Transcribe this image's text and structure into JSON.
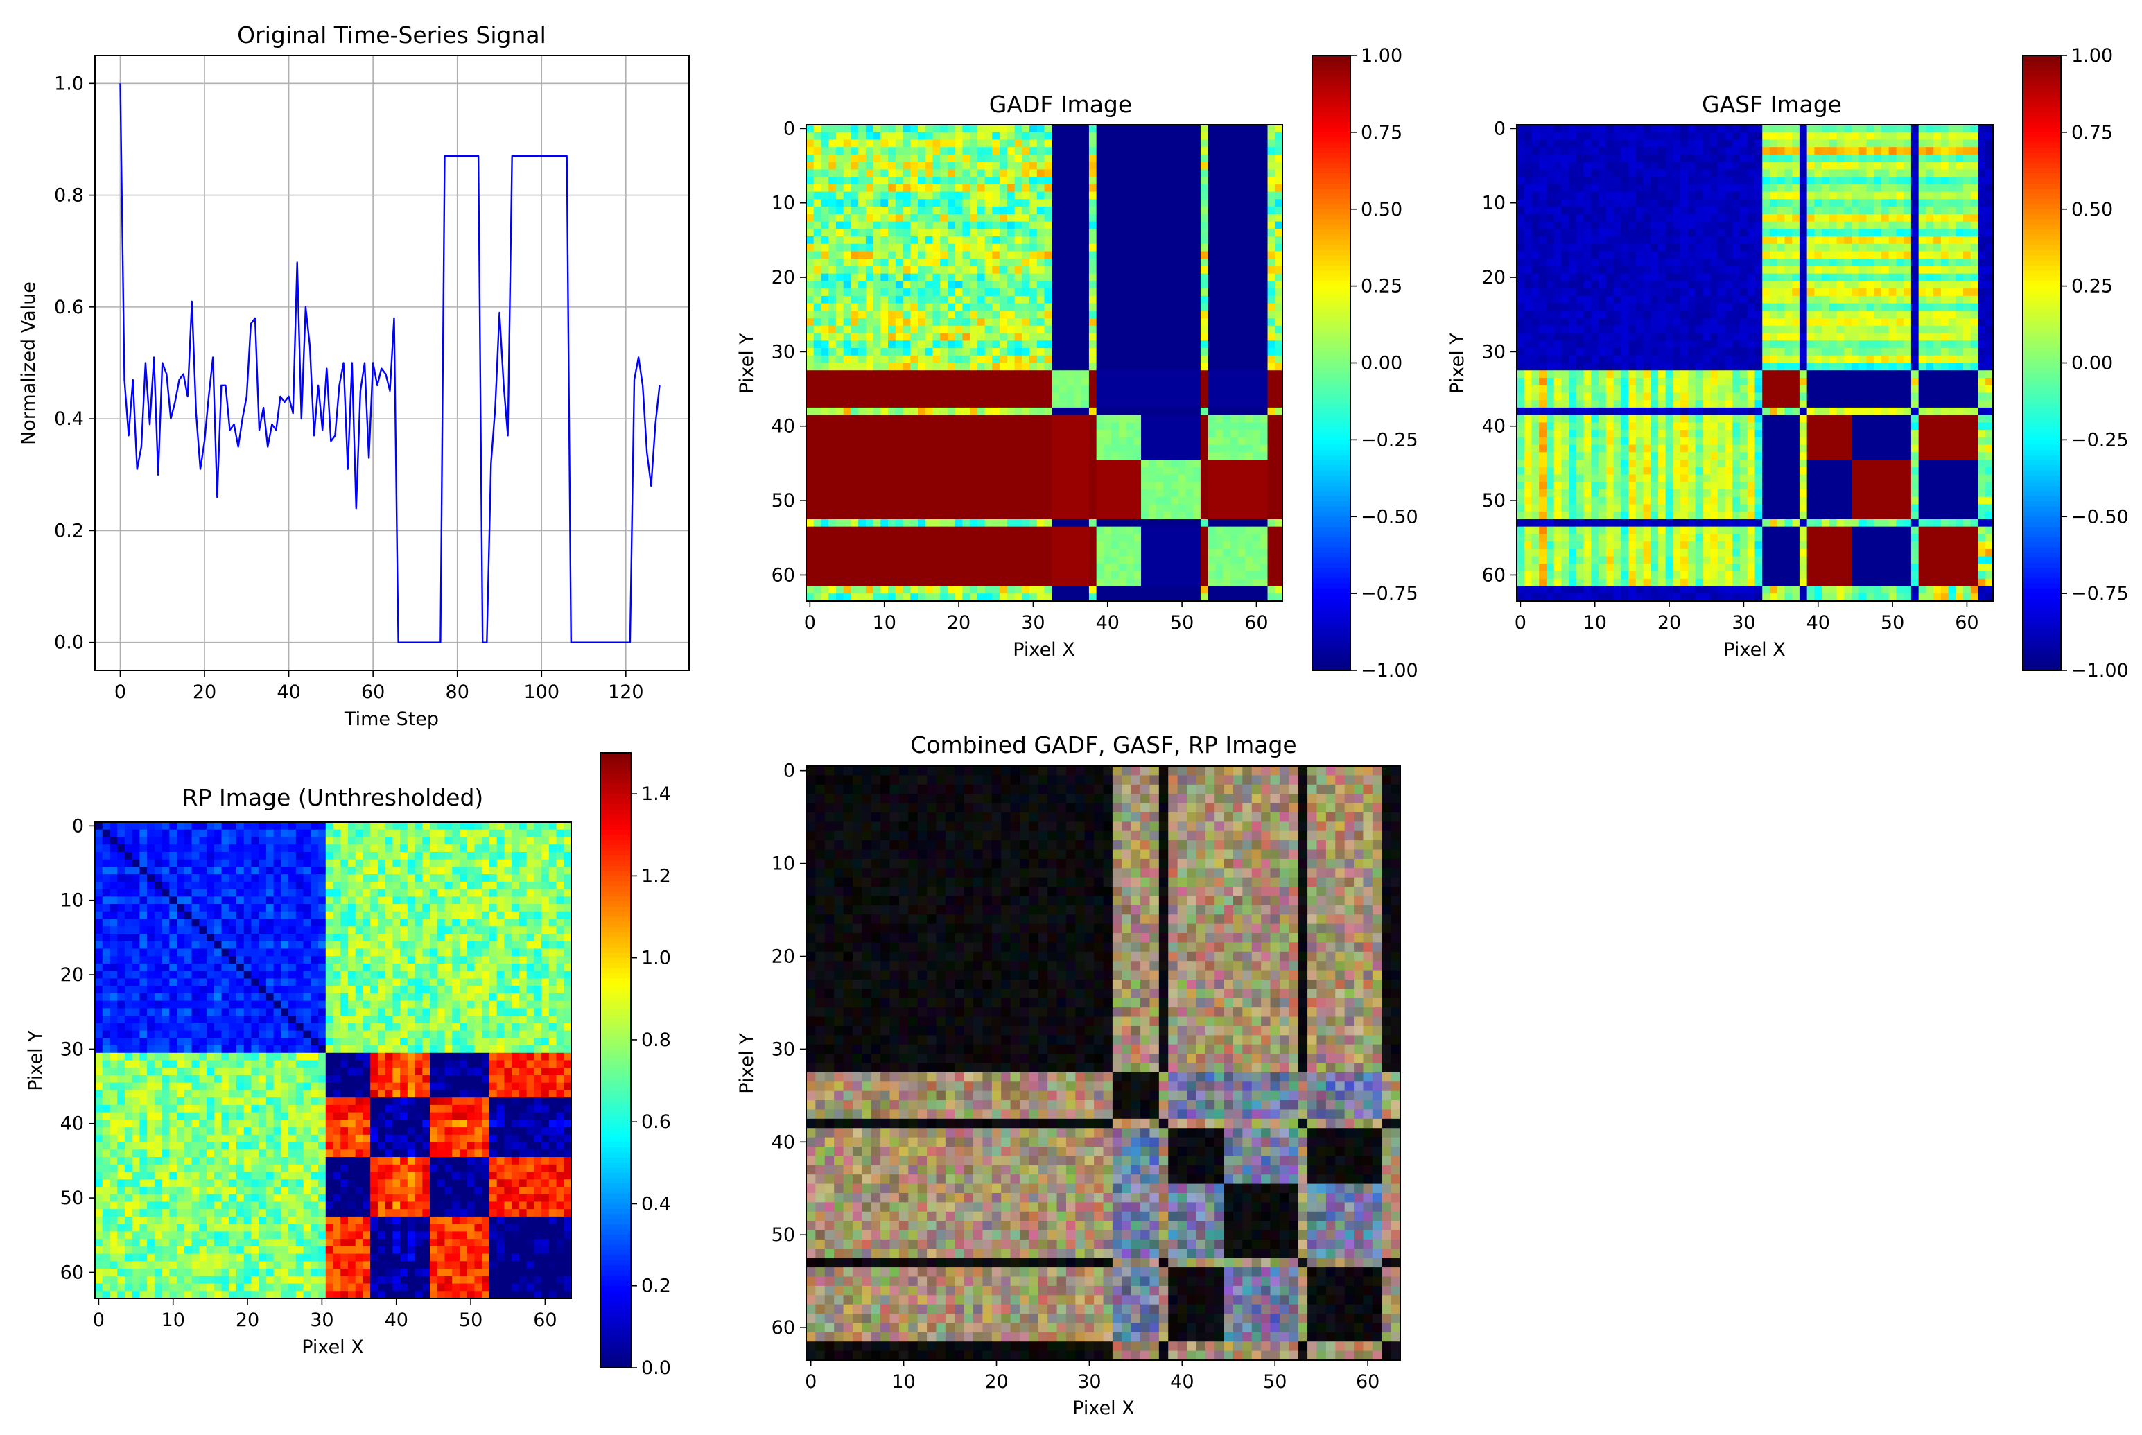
{
  "chart_data": [
    {
      "id": "signal",
      "type": "line",
      "title": "Original Time-Series Signal",
      "xlabel": "Time Step",
      "ylabel": "Normalized Value",
      "xlim": [
        -6,
        135
      ],
      "ylim": [
        -0.05,
        1.05
      ],
      "xticks": [
        0,
        20,
        40,
        60,
        80,
        100,
        120
      ],
      "yticks": [
        0.0,
        0.2,
        0.4,
        0.6,
        0.8,
        1.0
      ],
      "grid": true,
      "line_color": "#0000ff",
      "series": [
        {
          "name": "signal",
          "x": [
            0,
            1,
            2,
            3,
            4,
            5,
            6,
            7,
            8,
            9,
            10,
            11,
            12,
            13,
            14,
            15,
            16,
            17,
            18,
            19,
            20,
            21,
            22,
            23,
            24,
            25,
            26,
            27,
            28,
            29,
            30,
            31,
            32,
            33,
            34,
            35,
            36,
            37,
            38,
            39,
            40,
            41,
            42,
            43,
            44,
            45,
            46,
            47,
            48,
            49,
            50,
            51,
            52,
            53,
            54,
            55,
            56,
            57,
            58,
            59,
            60,
            61,
            62,
            63,
            64,
            65,
            66,
            67,
            76,
            77,
            85,
            86,
            87,
            88,
            89,
            90,
            91,
            92,
            93,
            106,
            107,
            120,
            121,
            122,
            123,
            124,
            125,
            126,
            127,
            128
          ],
          "values": [
            1.0,
            0.47,
            0.37,
            0.47,
            0.31,
            0.35,
            0.5,
            0.39,
            0.51,
            0.3,
            0.5,
            0.48,
            0.4,
            0.43,
            0.47,
            0.48,
            0.44,
            0.61,
            0.41,
            0.31,
            0.36,
            0.44,
            0.51,
            0.26,
            0.46,
            0.46,
            0.38,
            0.39,
            0.35,
            0.4,
            0.44,
            0.57,
            0.58,
            0.38,
            0.42,
            0.35,
            0.39,
            0.38,
            0.44,
            0.43,
            0.44,
            0.41,
            0.68,
            0.4,
            0.6,
            0.53,
            0.37,
            0.46,
            0.38,
            0.49,
            0.36,
            0.37,
            0.46,
            0.5,
            0.31,
            0.5,
            0.24,
            0.45,
            0.5,
            0.33,
            0.5,
            0.46,
            0.49,
            0.48,
            0.45,
            0.58,
            0.0,
            0.0,
            0.0,
            0.87,
            0.87,
            0.0,
            0.0,
            0.32,
            0.42,
            0.59,
            0.46,
            0.37,
            0.87,
            0.87,
            0.0,
            0.0,
            0.0,
            0.47,
            0.51,
            0.46,
            0.34,
            0.28,
            0.39,
            0.46
          ]
        }
      ]
    },
    {
      "id": "gadf",
      "type": "heatmap",
      "title": "GADF Image",
      "xlabel": "Pixel X",
      "ylabel": "Pixel Y",
      "size": 64,
      "colormap": "jet",
      "vmin": -1.0,
      "vmax": 1.0,
      "xticks": [
        0,
        10,
        20,
        30,
        40,
        50,
        60
      ],
      "yticks": [
        0,
        10,
        20,
        30,
        40,
        50,
        60
      ],
      "colorbar_ticks": [
        "1.00",
        "0.75",
        "0.50",
        "0.25",
        "0.00",
        "−0.25",
        "−0.50",
        "−0.75",
        "−1.00"
      ],
      "colorbar_values": [
        1.0,
        0.75,
        0.5,
        0.25,
        0.0,
        -0.25,
        -0.5,
        -0.75,
        -1.0
      ],
      "structure": {
        "low_block_rows": [
          [
            0,
            32
          ],
          [
            62,
            63
          ]
        ],
        "high_block_rows": [
          [
            33,
            37
          ],
          [
            39,
            44
          ],
          [
            45,
            52
          ],
          [
            54,
            61
          ]
        ],
        "low_block_cols": [
          [
            33,
            37
          ],
          [
            39,
            44
          ],
          [
            45,
            52
          ],
          [
            54,
            61
          ]
        ],
        "high_block_cols": [
          [
            0,
            32
          ]
        ]
      }
    },
    {
      "id": "gasf",
      "type": "heatmap",
      "title": "GASF Image",
      "xlabel": "Pixel X",
      "ylabel": "Pixel Y",
      "size": 64,
      "colormap": "jet",
      "vmin": -1.0,
      "vmax": 1.0,
      "xticks": [
        0,
        10,
        20,
        30,
        40,
        50,
        60
      ],
      "yticks": [
        0,
        10,
        20,
        30,
        40,
        50,
        60
      ],
      "colorbar_ticks": [
        "1.00",
        "0.75",
        "0.50",
        "0.25",
        "0.00",
        "−0.25",
        "−0.50",
        "−0.75",
        "−1.00"
      ],
      "colorbar_values": [
        1.0,
        0.75,
        0.5,
        0.25,
        0.0,
        -0.25,
        -0.5,
        -0.75,
        -1.0
      ]
    },
    {
      "id": "rp",
      "type": "heatmap",
      "title": "RP Image (Unthresholded)",
      "xlabel": "Pixel X",
      "ylabel": "Pixel Y",
      "size": 64,
      "colormap": "jet",
      "vmin": 0.0,
      "vmax": 1.5,
      "xticks": [
        0,
        10,
        20,
        30,
        40,
        50,
        60
      ],
      "yticks": [
        0,
        10,
        20,
        30,
        40,
        50,
        60
      ],
      "colorbar_ticks": [
        "1.4",
        "1.2",
        "1.0",
        "0.8",
        "0.6",
        "0.4",
        "0.2",
        "0.0"
      ],
      "colorbar_values": [
        1.4,
        1.2,
        1.0,
        0.8,
        0.6,
        0.4,
        0.2,
        0.0
      ]
    },
    {
      "id": "combined",
      "type": "heatmap",
      "title": "Combined GADF, GASF, RP Image",
      "xlabel": "Pixel X",
      "ylabel": "Pixel Y",
      "size": 64,
      "colormap": "rgb",
      "xticks": [
        0,
        10,
        20,
        30,
        40,
        50,
        60
      ],
      "yticks": [
        0,
        10,
        20,
        30,
        40,
        50,
        60
      ]
    }
  ]
}
